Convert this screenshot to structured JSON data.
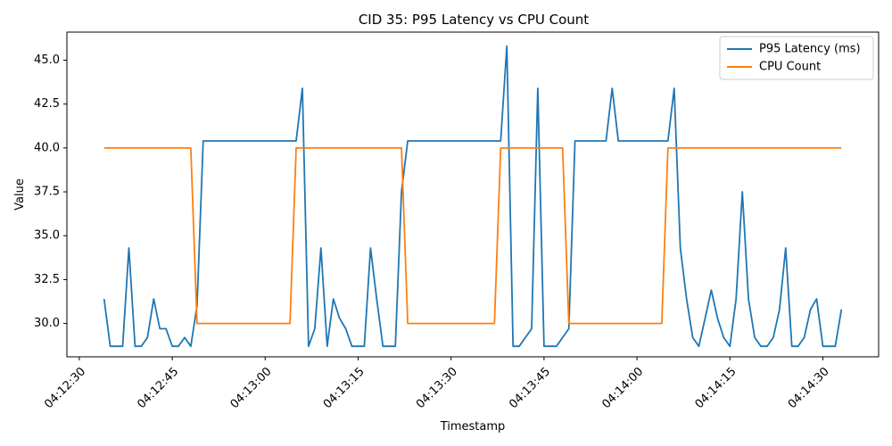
{
  "chart_data": {
    "type": "line",
    "title": "CID 35: P95 Latency vs CPU Count",
    "xlabel": "Timestamp",
    "ylabel": "Value",
    "ylim": [
      28.1,
      46.6
    ],
    "yticks": [
      30.0,
      32.5,
      35.0,
      37.5,
      40.0,
      42.5,
      45.0
    ],
    "ytick_labels": [
      "30.0",
      "32.5",
      "35.0",
      "37.5",
      "40.0",
      "42.5",
      "45.0"
    ],
    "x_unit": "seconds since 04:12:30",
    "xlim": [
      -2,
      129
    ],
    "xticks": [
      0,
      15,
      30,
      45,
      60,
      75,
      90,
      105,
      120
    ],
    "xtick_labels": [
      "04:12:30",
      "04:12:45",
      "04:13:00",
      "04:13:15",
      "04:13:30",
      "04:13:45",
      "04:14:00",
      "04:14:15",
      "04:14:30"
    ],
    "legend_position": "top-right",
    "grid": false,
    "series": [
      {
        "name": "P95 Latency (ms)",
        "color": "#1f77b4",
        "x": [
          4,
          5,
          6,
          7,
          8,
          9,
          10,
          11,
          12,
          13,
          14,
          15,
          16,
          17,
          18,
          19,
          20,
          21,
          22,
          23,
          24,
          25,
          26,
          27,
          28,
          29,
          30,
          31,
          32,
          33,
          34,
          35,
          36,
          37,
          38,
          39,
          40,
          41,
          42,
          43,
          44,
          45,
          46,
          47,
          48,
          49,
          50,
          51,
          52,
          53,
          54,
          55,
          56,
          57,
          58,
          59,
          60,
          61,
          62,
          63,
          64,
          65,
          66,
          67,
          68,
          69,
          70,
          71,
          72,
          73,
          74,
          75,
          76,
          77,
          78,
          79,
          80,
          81,
          82,
          83,
          84,
          85,
          86,
          87,
          88,
          89,
          90,
          91,
          92,
          93,
          94,
          95,
          96,
          97,
          98,
          99,
          100,
          101,
          102,
          103,
          104,
          105,
          106,
          107,
          108,
          109,
          110,
          111,
          112,
          113,
          114,
          115,
          116,
          117,
          118,
          119,
          120,
          121,
          122,
          123
        ],
        "y": [
          31.4,
          28.7,
          28.7,
          28.7,
          34.3,
          28.7,
          28.7,
          29.2,
          31.4,
          29.7,
          29.7,
          28.7,
          28.7,
          29.2,
          28.7,
          31.0,
          40.4,
          40.4,
          40.4,
          40.4,
          40.4,
          40.4,
          40.4,
          40.4,
          40.4,
          40.4,
          40.4,
          40.4,
          40.4,
          40.4,
          40.4,
          40.4,
          43.4,
          28.7,
          29.7,
          34.3,
          28.7,
          31.4,
          30.3,
          29.7,
          28.7,
          28.7,
          28.7,
          34.3,
          31.4,
          28.7,
          28.7,
          28.7,
          37.5,
          40.4,
          40.4,
          40.4,
          40.4,
          40.4,
          40.4,
          40.4,
          40.4,
          40.4,
          40.4,
          40.4,
          40.4,
          40.4,
          40.4,
          40.4,
          40.4,
          45.8,
          28.7,
          28.7,
          29.2,
          29.7,
          43.4,
          28.7,
          28.7,
          28.7,
          29.2,
          29.7,
          40.4,
          40.4,
          40.4,
          40.4,
          40.4,
          40.4,
          43.4,
          40.4,
          40.4,
          40.4,
          40.4,
          40.4,
          40.4,
          40.4,
          40.4,
          40.4,
          43.4,
          34.3,
          31.4,
          29.2,
          28.7,
          30.3,
          31.9,
          30.3,
          29.2,
          28.7,
          31.4,
          37.5,
          31.4,
          29.2,
          28.7,
          28.7,
          29.2,
          30.8,
          34.3,
          28.7,
          28.7,
          29.2,
          30.8,
          31.4,
          28.7,
          28.7,
          28.7,
          30.8
        ]
      },
      {
        "name": "CPU Count",
        "color": "#ff7f0e",
        "x": [
          4,
          18,
          19,
          34,
          35,
          52,
          53,
          67,
          68,
          78,
          79,
          94,
          95,
          123
        ],
        "y": [
          40,
          40,
          30,
          30,
          40,
          40,
          30,
          30,
          40,
          40,
          30,
          30,
          40,
          40
        ]
      }
    ]
  }
}
